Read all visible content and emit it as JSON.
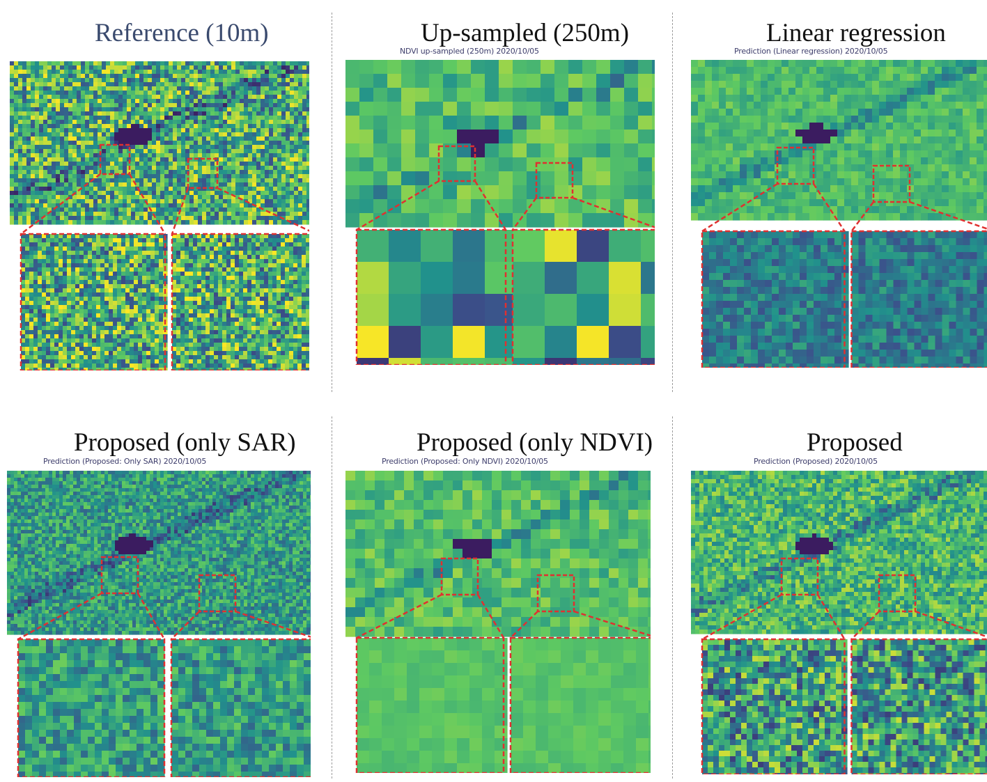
{
  "figure": {
    "panels": [
      {
        "id": "reference",
        "title": "Reference (10m)",
        "subtitle": ""
      },
      {
        "id": "upsampled",
        "title": "Up-sampled (250m)",
        "subtitle": "NDVI up-sampled (250m) 2020/10/05"
      },
      {
        "id": "linear",
        "title": "Linear regression",
        "subtitle": "Prediction (Linear regression) 2020/10/05"
      },
      {
        "id": "only-sar",
        "title": "Proposed (only SAR)",
        "subtitle": "Prediction (Proposed: Only SAR) 2020/10/05"
      },
      {
        "id": "only-ndvi",
        "title": "Proposed (only NDVI)",
        "subtitle": "Prediction (Proposed: Only NDVI) 2020/10/05"
      },
      {
        "id": "proposed",
        "title": "Proposed",
        "subtitle": "Prediction (Proposed) 2020/10/05"
      }
    ],
    "colors": {
      "viridis_dark": "#3b0f55",
      "viridis_blue": "#3b528b",
      "viridis_teal": "#21918c",
      "viridis_green": "#5ec962",
      "viridis_yellow": "#fde725",
      "zoom_box": "#e03030"
    }
  }
}
